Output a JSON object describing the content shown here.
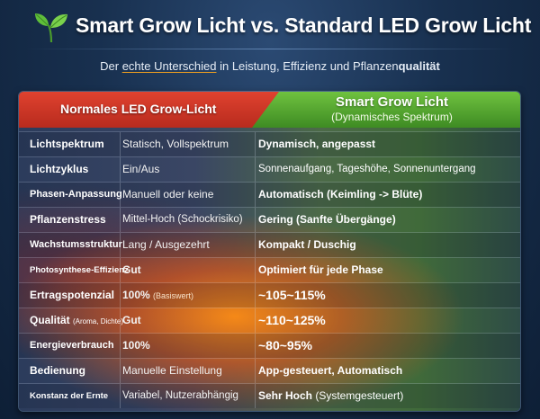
{
  "header": {
    "title": "Smart Grow Licht vs. Standard LED Grow Licht",
    "subtitle_pre": "Der ",
    "subtitle_underlined": "echte Unterschied",
    "subtitle_mid": " in Leistung, Effizienz und Pflanzen",
    "subtitle_bold": "qualität",
    "logo_icon": "seedling-leaves-icon",
    "colors": {
      "leaf": "#5fbe3a",
      "underline": "#f0a020"
    }
  },
  "table": {
    "col_left_header": "Normales LED Grow-Licht",
    "col_right_header": "Smart Grow Licht",
    "col_right_subheader": "(Dynamisches Spektrum)",
    "colors": {
      "left_header": "#c8321f",
      "right_header": "#55a82f"
    },
    "rows": [
      {
        "label": "Lichtspektrum",
        "label_note": "",
        "standard": "Statisch, Vollspektrum",
        "standard_note": "",
        "smart": "Dynamisch, angepasst",
        "smart_bold": ""
      },
      {
        "label": "Lichtzyklus",
        "label_note": "",
        "standard": "Ein/Aus",
        "standard_note": "",
        "smart": "Sonnenaufgang, Tageshöhe, Sonnenuntergang",
        "smart_bold": ""
      },
      {
        "label": "Phasen-Anpassung",
        "label_note": "",
        "standard": "Manuell oder keine",
        "standard_note": "",
        "smart": "Automatisch (Keimling -> Blüte)",
        "smart_bold": ""
      },
      {
        "label": "Pflanzenstress",
        "label_note": "",
        "standard": "Mittel-Hoch (Schockrisiko)",
        "standard_note": "",
        "smart": "Gering (Sanfte Übergänge)",
        "smart_bold": ""
      },
      {
        "label": "Wachstumsstruktur",
        "label_note": "",
        "standard": "Lang / Ausgezehrt",
        "standard_note": "",
        "smart": "Kompakt / Duschig",
        "smart_bold": ""
      },
      {
        "label": "Photosynthese-Effizienz",
        "label_note": "",
        "standard": "Gut",
        "standard_note": "",
        "smart": "Optimiert für jede Phase",
        "smart_bold": ""
      },
      {
        "label": "Ertragspotenzial",
        "label_note": "",
        "standard": "100%",
        "standard_note": "(Basiswert)",
        "smart": "~105~115%",
        "smart_bold": ""
      },
      {
        "label": "Qualität",
        "label_note": "(Aroma, Dichte)",
        "standard": "Gut",
        "standard_note": "",
        "smart": "~110~125%",
        "smart_bold": ""
      },
      {
        "label": "Energieverbrauch",
        "label_note": "",
        "standard": "100%",
        "standard_note": "",
        "smart": "~80~95%",
        "smart_bold": ""
      },
      {
        "label": "Bedienung",
        "label_note": "",
        "standard": "Manuelle Einstellung",
        "standard_note": "",
        "smart": "App-gesteuert, Automatisch",
        "smart_bold": ""
      },
      {
        "label": "Konstanz der Ernte",
        "label_note": "",
        "standard": "Variabel, Nutzerabhängig",
        "standard_note": "",
        "smart": "Sehr Hoch",
        "smart_bold": " (Systemgesteuert)"
      }
    ]
  }
}
